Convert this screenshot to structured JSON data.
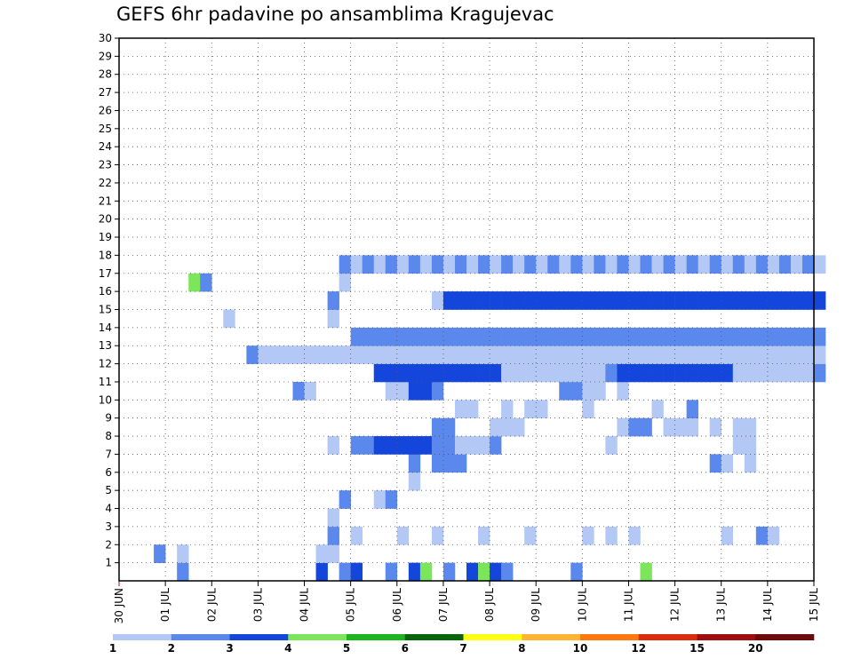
{
  "chart_data": {
    "type": "heatmap",
    "title": "GEFS 6hr padavine po ansamblima Kragujevac",
    "xlabel": "",
    "ylabel": "",
    "x_ticks": [
      "30 JUN",
      "01 JUL",
      "02 JUL",
      "03 JUL",
      "04 JUL",
      "05 JUL",
      "06 JUL",
      "07 JUL",
      "08 JUL",
      "09 JUL",
      "10 JUL",
      "11 JUL",
      "12 JUL",
      "13 JUL",
      "14 JUL",
      "15 JUL"
    ],
    "y_ticks": [
      "1",
      "2",
      "3",
      "4",
      "5",
      "6",
      "7",
      "8",
      "9",
      "10",
      "11",
      "12",
      "13",
      "14",
      "15",
      "16",
      "17",
      "18",
      "19",
      "20",
      "21",
      "22",
      "23",
      "24",
      "25",
      "26",
      "27",
      "28",
      "29",
      "30"
    ],
    "x_range": [
      0,
      60
    ],
    "y_range": [
      0,
      30
    ],
    "grid": true,
    "colorbar": {
      "labels": [
        "1",
        "2",
        "3",
        "4",
        "5",
        "6",
        "7",
        "8",
        "10",
        "12",
        "15",
        "20"
      ],
      "colors": [
        "#b4c8f5",
        "#5a88ec",
        "#1446dc",
        "#7ce65a",
        "#1eb41e",
        "#0a640a",
        "#ffff14",
        "#ffb432",
        "#ff780f",
        "#dc2d0f",
        "#a00f0f",
        "#6e0a0a"
      ]
    },
    "cells": [
      [
        5,
        0,
        2
      ],
      [
        17,
        0,
        3
      ],
      [
        19,
        0,
        2
      ],
      [
        20,
        0,
        3
      ],
      [
        23,
        0,
        2
      ],
      [
        25,
        0,
        3
      ],
      [
        26,
        0,
        4
      ],
      [
        28,
        0,
        2
      ],
      [
        30,
        0,
        3
      ],
      [
        31,
        0,
        4
      ],
      [
        32,
        0,
        3
      ],
      [
        33,
        0,
        2
      ],
      [
        39,
        0,
        2
      ],
      [
        45,
        0,
        4
      ],
      [
        3,
        1,
        2
      ],
      [
        5,
        1,
        1
      ],
      [
        17,
        1,
        1
      ],
      [
        18,
        1,
        1
      ],
      [
        18,
        2,
        2
      ],
      [
        20,
        2,
        1
      ],
      [
        24,
        2,
        1
      ],
      [
        27,
        2,
        1
      ],
      [
        31,
        2,
        1
      ],
      [
        35,
        2,
        1
      ],
      [
        40,
        2,
        1
      ],
      [
        42,
        2,
        1
      ],
      [
        44,
        2,
        1
      ],
      [
        52,
        2,
        1
      ],
      [
        55,
        2,
        2
      ],
      [
        56,
        2,
        1
      ],
      [
        18,
        3,
        1
      ],
      [
        19,
        4,
        2
      ],
      [
        22,
        4,
        1
      ],
      [
        23,
        4,
        2
      ],
      [
        25,
        5,
        1
      ],
      [
        25,
        6,
        2
      ],
      [
        27,
        6,
        2
      ],
      [
        28,
        6,
        2
      ],
      [
        29,
        6,
        2
      ],
      [
        51,
        6,
        2
      ],
      [
        52,
        6,
        1
      ],
      [
        54,
        6,
        1
      ],
      [
        18,
        7,
        1
      ],
      [
        20,
        7,
        2
      ],
      [
        21,
        7,
        2
      ],
      [
        22,
        7,
        3
      ],
      [
        23,
        7,
        3
      ],
      [
        24,
        7,
        3
      ],
      [
        25,
        7,
        3
      ],
      [
        26,
        7,
        3
      ],
      [
        27,
        7,
        2
      ],
      [
        28,
        7,
        2
      ],
      [
        29,
        7,
        1
      ],
      [
        30,
        7,
        1
      ],
      [
        31,
        7,
        1
      ],
      [
        32,
        7,
        2
      ],
      [
        42,
        7,
        1
      ],
      [
        53,
        7,
        1
      ],
      [
        54,
        7,
        1
      ],
      [
        27,
        8,
        2
      ],
      [
        28,
        8,
        2
      ],
      [
        32,
        8,
        1
      ],
      [
        33,
        8,
        1
      ],
      [
        34,
        8,
        1
      ],
      [
        43,
        8,
        1
      ],
      [
        44,
        8,
        2
      ],
      [
        45,
        8,
        2
      ],
      [
        47,
        8,
        1
      ],
      [
        48,
        8,
        1
      ],
      [
        49,
        8,
        1
      ],
      [
        51,
        8,
        1
      ],
      [
        53,
        8,
        1
      ],
      [
        54,
        8,
        1
      ],
      [
        29,
        9,
        1
      ],
      [
        30,
        9,
        1
      ],
      [
        33,
        9,
        1
      ],
      [
        35,
        9,
        1
      ],
      [
        36,
        9,
        1
      ],
      [
        40,
        9,
        1
      ],
      [
        46,
        9,
        1
      ],
      [
        49,
        9,
        2
      ],
      [
        15,
        10,
        2
      ],
      [
        16,
        10,
        1
      ],
      [
        23,
        10,
        1
      ],
      [
        24,
        10,
        1
      ],
      [
        25,
        10,
        3
      ],
      [
        26,
        10,
        3
      ],
      [
        27,
        10,
        2
      ],
      [
        38,
        10,
        2
      ],
      [
        39,
        10,
        2
      ],
      [
        40,
        10,
        1
      ],
      [
        41,
        10,
        1
      ],
      [
        43,
        10,
        1
      ],
      [
        22,
        11,
        3
      ],
      [
        23,
        11,
        3
      ],
      [
        24,
        11,
        3
      ],
      [
        25,
        11,
        3
      ],
      [
        26,
        11,
        3
      ],
      [
        27,
        11,
        3
      ],
      [
        28,
        11,
        3
      ],
      [
        29,
        11,
        3
      ],
      [
        30,
        11,
        3
      ],
      [
        31,
        11,
        3
      ],
      [
        32,
        11,
        3
      ],
      [
        33,
        11,
        1
      ],
      [
        34,
        11,
        1
      ],
      [
        35,
        11,
        1
      ],
      [
        36,
        11,
        1
      ],
      [
        37,
        11,
        1
      ],
      [
        38,
        11,
        1
      ],
      [
        39,
        11,
        1
      ],
      [
        40,
        11,
        1
      ],
      [
        41,
        11,
        1
      ],
      [
        42,
        11,
        2
      ],
      [
        43,
        11,
        3
      ],
      [
        44,
        11,
        3
      ],
      [
        45,
        11,
        3
      ],
      [
        46,
        11,
        3
      ],
      [
        47,
        11,
        3
      ],
      [
        48,
        11,
        3
      ],
      [
        49,
        11,
        3
      ],
      [
        50,
        11,
        3
      ],
      [
        51,
        11,
        3
      ],
      [
        52,
        11,
        3
      ],
      [
        53,
        11,
        1
      ],
      [
        54,
        11,
        1
      ],
      [
        55,
        11,
        1
      ],
      [
        56,
        11,
        1
      ],
      [
        57,
        11,
        1
      ],
      [
        58,
        11,
        1
      ],
      [
        59,
        11,
        1
      ],
      [
        60,
        11,
        2
      ],
      [
        11,
        12,
        2
      ],
      [
        12,
        12,
        1
      ],
      [
        13,
        12,
        1
      ],
      [
        14,
        12,
        1
      ],
      [
        15,
        12,
        1
      ],
      [
        16,
        12,
        1
      ],
      [
        17,
        12,
        1
      ],
      [
        18,
        12,
        1
      ],
      [
        19,
        12,
        1
      ],
      [
        20,
        12,
        1
      ],
      [
        21,
        12,
        1
      ],
      [
        22,
        12,
        1
      ],
      [
        23,
        12,
        1
      ],
      [
        24,
        12,
        1
      ],
      [
        25,
        12,
        1
      ],
      [
        26,
        12,
        1
      ],
      [
        27,
        12,
        1
      ],
      [
        28,
        12,
        1
      ],
      [
        29,
        12,
        1
      ],
      [
        30,
        12,
        1
      ],
      [
        31,
        12,
        1
      ],
      [
        32,
        12,
        1
      ],
      [
        33,
        12,
        1
      ],
      [
        34,
        12,
        1
      ],
      [
        35,
        12,
        1
      ],
      [
        36,
        12,
        1
      ],
      [
        37,
        12,
        1
      ],
      [
        38,
        12,
        1
      ],
      [
        39,
        12,
        1
      ],
      [
        40,
        12,
        1
      ],
      [
        41,
        12,
        1
      ],
      [
        42,
        12,
        1
      ],
      [
        43,
        12,
        1
      ],
      [
        44,
        12,
        1
      ],
      [
        45,
        12,
        1
      ],
      [
        46,
        12,
        1
      ],
      [
        47,
        12,
        1
      ],
      [
        48,
        12,
        1
      ],
      [
        49,
        12,
        1
      ],
      [
        50,
        12,
        1
      ],
      [
        51,
        12,
        1
      ],
      [
        52,
        12,
        1
      ],
      [
        53,
        12,
        1
      ],
      [
        54,
        12,
        1
      ],
      [
        55,
        12,
        1
      ],
      [
        56,
        12,
        1
      ],
      [
        57,
        12,
        1
      ],
      [
        58,
        12,
        1
      ],
      [
        59,
        12,
        1
      ],
      [
        60,
        12,
        1
      ],
      [
        20,
        13,
        2
      ],
      [
        21,
        13,
        2
      ],
      [
        22,
        13,
        2
      ],
      [
        23,
        13,
        2
      ],
      [
        24,
        13,
        2
      ],
      [
        25,
        13,
        2
      ],
      [
        26,
        13,
        2
      ],
      [
        27,
        13,
        2
      ],
      [
        28,
        13,
        2
      ],
      [
        29,
        13,
        2
      ],
      [
        30,
        13,
        2
      ],
      [
        31,
        13,
        2
      ],
      [
        32,
        13,
        2
      ],
      [
        33,
        13,
        2
      ],
      [
        34,
        13,
        2
      ],
      [
        35,
        13,
        2
      ],
      [
        36,
        13,
        2
      ],
      [
        37,
        13,
        2
      ],
      [
        38,
        13,
        2
      ],
      [
        39,
        13,
        2
      ],
      [
        40,
        13,
        2
      ],
      [
        41,
        13,
        2
      ],
      [
        42,
        13,
        2
      ],
      [
        43,
        13,
        2
      ],
      [
        44,
        13,
        2
      ],
      [
        45,
        13,
        2
      ],
      [
        46,
        13,
        2
      ],
      [
        47,
        13,
        2
      ],
      [
        48,
        13,
        2
      ],
      [
        49,
        13,
        2
      ],
      [
        50,
        13,
        2
      ],
      [
        51,
        13,
        2
      ],
      [
        52,
        13,
        2
      ],
      [
        53,
        13,
        2
      ],
      [
        54,
        13,
        2
      ],
      [
        55,
        13,
        2
      ],
      [
        56,
        13,
        2
      ],
      [
        57,
        13,
        2
      ],
      [
        58,
        13,
        2
      ],
      [
        59,
        13,
        2
      ],
      [
        60,
        13,
        2
      ],
      [
        9,
        14,
        1
      ],
      [
        18,
        14,
        1
      ],
      [
        18,
        15,
        2
      ],
      [
        27,
        15,
        1
      ],
      [
        28,
        15,
        3
      ],
      [
        29,
        15,
        3
      ],
      [
        30,
        15,
        3
      ],
      [
        31,
        15,
        3
      ],
      [
        32,
        15,
        3
      ],
      [
        33,
        15,
        3
      ],
      [
        34,
        15,
        3
      ],
      [
        35,
        15,
        3
      ],
      [
        36,
        15,
        3
      ],
      [
        37,
        15,
        3
      ],
      [
        38,
        15,
        3
      ],
      [
        39,
        15,
        3
      ],
      [
        40,
        15,
        3
      ],
      [
        41,
        15,
        3
      ],
      [
        42,
        15,
        3
      ],
      [
        43,
        15,
        3
      ],
      [
        44,
        15,
        3
      ],
      [
        45,
        15,
        3
      ],
      [
        46,
        15,
        3
      ],
      [
        47,
        15,
        3
      ],
      [
        48,
        15,
        3
      ],
      [
        49,
        15,
        3
      ],
      [
        50,
        15,
        3
      ],
      [
        51,
        15,
        3
      ],
      [
        52,
        15,
        3
      ],
      [
        53,
        15,
        3
      ],
      [
        54,
        15,
        3
      ],
      [
        55,
        15,
        3
      ],
      [
        56,
        15,
        3
      ],
      [
        57,
        15,
        3
      ],
      [
        58,
        15,
        3
      ],
      [
        59,
        15,
        3
      ],
      [
        60,
        15,
        3
      ],
      [
        6,
        16,
        4
      ],
      [
        7,
        16,
        2
      ],
      [
        19,
        16,
        1
      ],
      [
        19,
        17,
        2
      ],
      [
        20,
        17,
        1
      ],
      [
        21,
        17,
        2
      ],
      [
        22,
        17,
        1
      ],
      [
        23,
        17,
        2
      ],
      [
        24,
        17,
        1
      ],
      [
        25,
        17,
        2
      ],
      [
        26,
        17,
        1
      ],
      [
        27,
        17,
        2
      ],
      [
        28,
        17,
        1
      ],
      [
        29,
        17,
        2
      ],
      [
        30,
        17,
        1
      ],
      [
        31,
        17,
        2
      ],
      [
        32,
        17,
        1
      ],
      [
        33,
        17,
        2
      ],
      [
        34,
        17,
        1
      ],
      [
        35,
        17,
        2
      ],
      [
        36,
        17,
        1
      ],
      [
        37,
        17,
        2
      ],
      [
        38,
        17,
        1
      ],
      [
        39,
        17,
        2
      ],
      [
        40,
        17,
        1
      ],
      [
        41,
        17,
        2
      ],
      [
        42,
        17,
        1
      ],
      [
        43,
        17,
        2
      ],
      [
        44,
        17,
        1
      ],
      [
        45,
        17,
        2
      ],
      [
        46,
        17,
        1
      ],
      [
        47,
        17,
        2
      ],
      [
        48,
        17,
        1
      ],
      [
        49,
        17,
        2
      ],
      [
        50,
        17,
        1
      ],
      [
        51,
        17,
        2
      ],
      [
        52,
        17,
        1
      ],
      [
        53,
        17,
        2
      ],
      [
        54,
        17,
        1
      ],
      [
        55,
        17,
        2
      ],
      [
        56,
        17,
        1
      ],
      [
        57,
        17,
        2
      ],
      [
        58,
        17,
        1
      ],
      [
        59,
        17,
        2
      ],
      [
        60,
        17,
        1
      ]
    ]
  }
}
